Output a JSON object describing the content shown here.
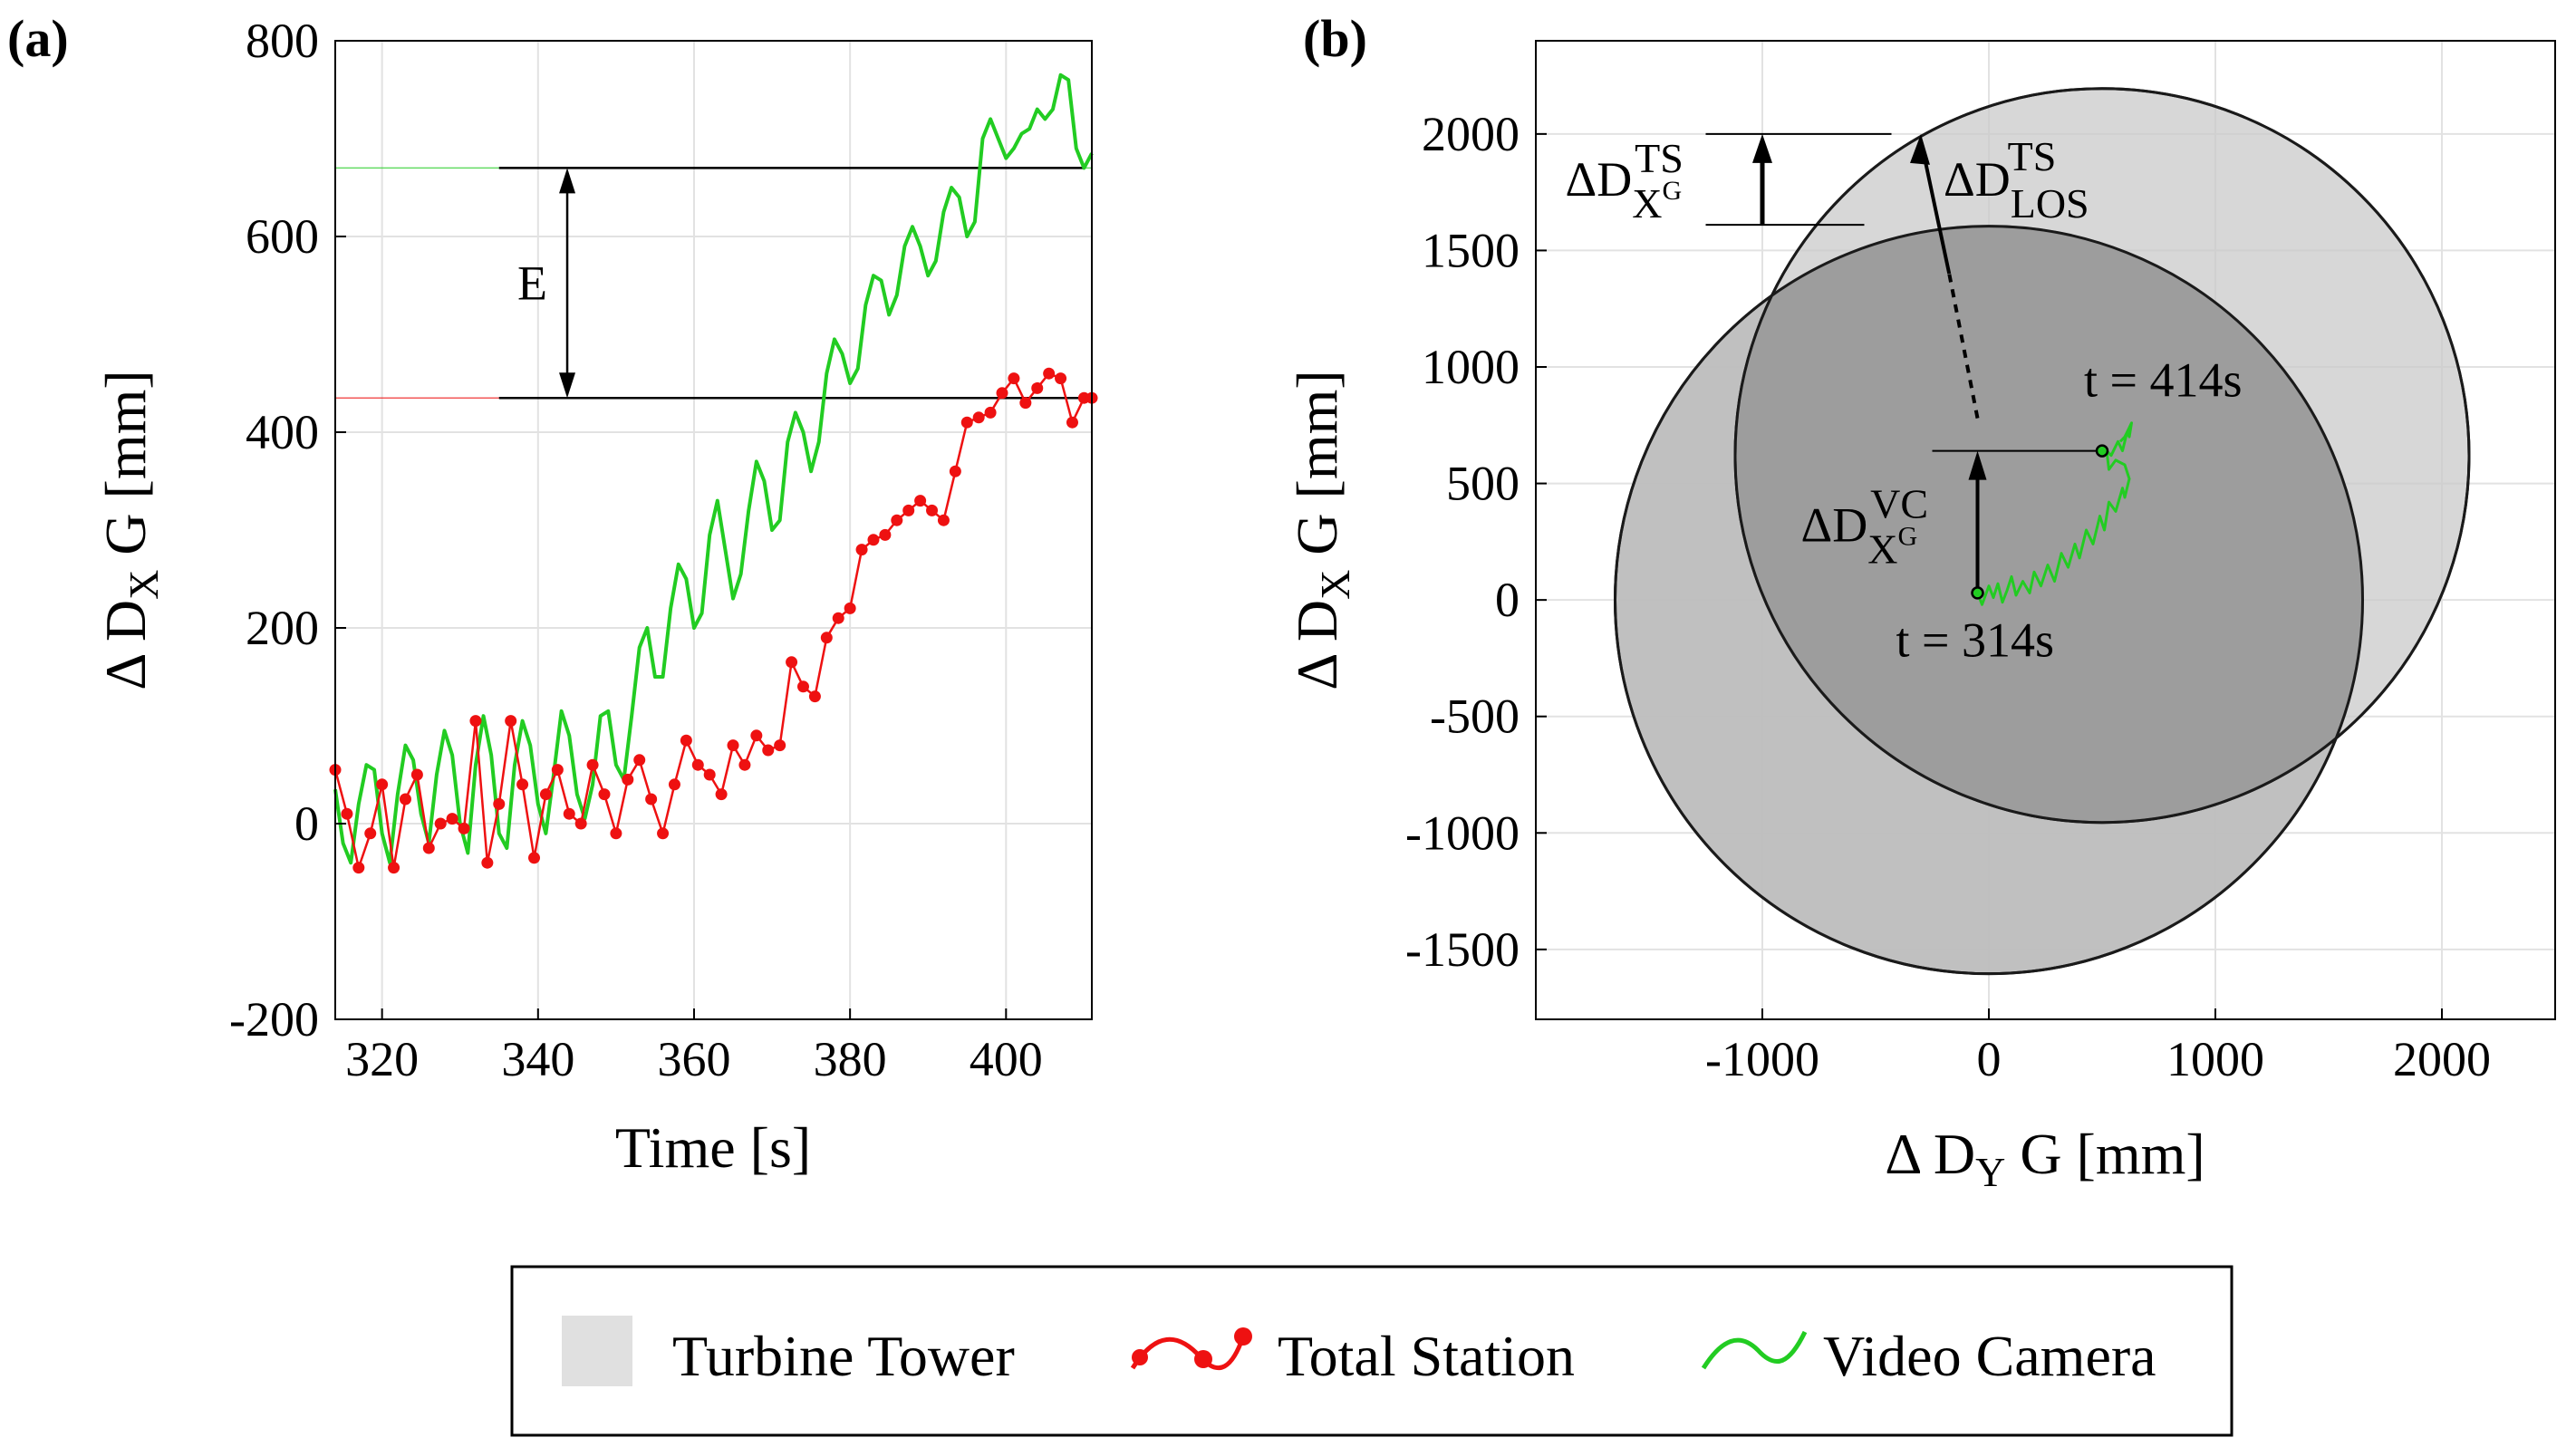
{
  "legend": [
    {
      "label": "Turbine Tower",
      "color": "#e0e0e0"
    },
    {
      "label": "Total Station",
      "color": "#ee1111"
    },
    {
      "label": "Video Camera",
      "color": "#22cc22"
    }
  ],
  "chart_data": [
    {
      "id": "a",
      "type": "line",
      "panel_label": "(a)",
      "xlabel": "Time [s]",
      "ylabel": {
        "main": "Δ D",
        "sub": "X",
        "suffix": " G [mm]"
      },
      "xlim": [
        314,
        411
      ],
      "ylim": [
        -200,
        800
      ],
      "xticks": [
        320,
        340,
        360,
        380,
        400
      ],
      "yticks": [
        -200,
        0,
        200,
        400,
        600,
        800
      ],
      "grid": true,
      "reference_lines": [
        {
          "series": "Video Camera",
          "y": 670
        },
        {
          "series": "Total Station",
          "y": 435
        }
      ],
      "annotation": {
        "label": "E",
        "from": 435,
        "to": 670,
        "at_x": 342
      },
      "series": [
        {
          "name": "Video Camera",
          "color": "#22cc22",
          "x": [
            314,
            315,
            316,
            317,
            318,
            319,
            320,
            321,
            322,
            323,
            324,
            325,
            326,
            327,
            328,
            329,
            330,
            331,
            332,
            333,
            334,
            335,
            336,
            337,
            338,
            339,
            340,
            341,
            342,
            343,
            344,
            345,
            346,
            347,
            348,
            349,
            350,
            351,
            352,
            353,
            354,
            355,
            356,
            357,
            358,
            359,
            360,
            361,
            362,
            363,
            364,
            365,
            366,
            367,
            368,
            369,
            370,
            371,
            372,
            373,
            374,
            375,
            376,
            377,
            378,
            379,
            380,
            381,
            382,
            383,
            384,
            385,
            386,
            387,
            388,
            389,
            390,
            391,
            392,
            393,
            394,
            395,
            396,
            397,
            398,
            399,
            400,
            401,
            402,
            403,
            404,
            405,
            406,
            407,
            408,
            409,
            410,
            411
          ],
          "y": [
            35,
            -20,
            -40,
            20,
            60,
            55,
            -10,
            -40,
            30,
            80,
            65,
            10,
            -20,
            50,
            95,
            70,
            0,
            -30,
            60,
            110,
            70,
            -10,
            -25,
            60,
            105,
            80,
            20,
            -10,
            50,
            115,
            90,
            30,
            5,
            40,
            110,
            115,
            60,
            45,
            110,
            180,
            200,
            150,
            150,
            220,
            265,
            250,
            200,
            215,
            295,
            330,
            280,
            230,
            255,
            320,
            370,
            350,
            300,
            310,
            390,
            420,
            400,
            360,
            390,
            460,
            495,
            480,
            450,
            465,
            530,
            560,
            555,
            520,
            540,
            590,
            610,
            590,
            560,
            575,
            625,
            650,
            640,
            600,
            615,
            700,
            720,
            700,
            680,
            690,
            705,
            710,
            730,
            720,
            730,
            765,
            760,
            690,
            670,
            685
          ]
        },
        {
          "name": "Total Station",
          "color": "#ee1111",
          "x": [
            314,
            315.5,
            317,
            318.5,
            320,
            321.5,
            323,
            324.5,
            326,
            327.5,
            329,
            330.5,
            332,
            333.5,
            335,
            336.5,
            338,
            339.5,
            341,
            342.5,
            344,
            345.5,
            347,
            348.5,
            350,
            351.5,
            353,
            354.5,
            356,
            357.5,
            359,
            360.5,
            362,
            363.5,
            365,
            366.5,
            368,
            369.5,
            371,
            372.5,
            374,
            375.5,
            377,
            378.5,
            380,
            381.5,
            383,
            384.5,
            386,
            387.5,
            389,
            390.5,
            392,
            393.5,
            395,
            396.5,
            398,
            399.5,
            401,
            402.5,
            404,
            405.5,
            407,
            408.5,
            410,
            411
          ],
          "y": [
            55,
            10,
            -45,
            -10,
            40,
            -45,
            25,
            50,
            -25,
            0,
            5,
            -5,
            105,
            -40,
            20,
            105,
            40,
            -35,
            30,
            55,
            10,
            0,
            60,
            30,
            -10,
            45,
            65,
            25,
            -10,
            40,
            85,
            60,
            50,
            30,
            80,
            60,
            90,
            75,
            80,
            165,
            140,
            130,
            190,
            210,
            220,
            280,
            290,
            295,
            310,
            320,
            330,
            320,
            310,
            360,
            410,
            415,
            420,
            440,
            455,
            430,
            445,
            460,
            455,
            410,
            435,
            435
          ]
        }
      ]
    },
    {
      "id": "b",
      "type": "scatter",
      "panel_label": "(b)",
      "xlabel": {
        "main": "Δ D",
        "sub": "Y",
        "suffix": " G [mm]"
      },
      "ylabel": {
        "main": "Δ D",
        "sub": "X",
        "suffix": " G [mm]"
      },
      "xlim": [
        -2000,
        2500
      ],
      "ylim": [
        -1800,
        2400
      ],
      "xticks": [
        -1000,
        0,
        1000,
        2000
      ],
      "yticks": [
        -1500,
        -1000,
        -500,
        0,
        500,
        1000,
        1500,
        2000
      ],
      "grid": true,
      "circles": [
        {
          "name": "Turbine Tower",
          "cx": 0,
          "cy": 0,
          "r": 1650,
          "fill": "#bdbdbd"
        },
        {
          "name": "Turbine Tower",
          "cx": 500,
          "cy": 620,
          "r": 1620,
          "fill": "#c9c9c9"
        }
      ],
      "series": [
        {
          "name": "Video Camera",
          "color": "#22cc22",
          "x": [
            -50,
            -30,
            0,
            20,
            40,
            60,
            80,
            100,
            120,
            150,
            180,
            200,
            230,
            260,
            290,
            320,
            350,
            380,
            400,
            430,
            460,
            490,
            510,
            530,
            560,
            590,
            600,
            620,
            600,
            560,
            530,
            520,
            540,
            570,
            590,
            610,
            620,
            630,
            620,
            600,
            580
          ],
          "y": [
            30,
            -20,
            60,
            10,
            70,
            -10,
            40,
            100,
            20,
            80,
            30,
            120,
            60,
            150,
            80,
            200,
            140,
            240,
            180,
            300,
            240,
            360,
            300,
            420,
            380,
            480,
            440,
            520,
            580,
            600,
            560,
            640,
            620,
            680,
            640,
            720,
            700,
            760,
            740,
            700,
            680
          ]
        }
      ],
      "points": [
        {
          "label": "t = 314s",
          "x": -50,
          "y": 30
        },
        {
          "label": "t = 414s",
          "x": 500,
          "y": 640
        }
      ],
      "annotations": {
        "ts_label": {
          "main": "ΔD",
          "sub": "X",
          "subsup": "G",
          "sup": "TS"
        },
        "los_label": {
          "main": "ΔD",
          "sub": "LOS",
          "sup": "TS"
        },
        "vc_label": {
          "main": "ΔD",
          "sub": "X",
          "subsup": "G",
          "sup": "VC"
        },
        "ts_span": [
          1610,
          2000
        ],
        "vc_span": [
          30,
          640
        ]
      }
    }
  ]
}
